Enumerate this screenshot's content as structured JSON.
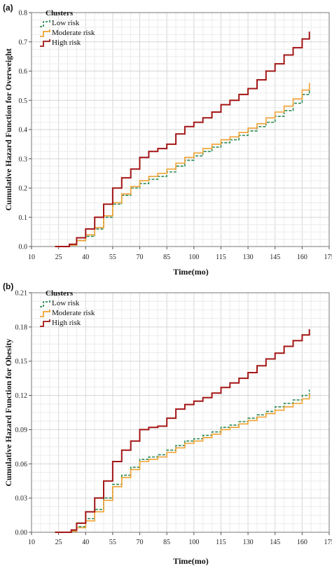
{
  "chart_data": [
    {
      "panel_label": "(a)",
      "type": "line",
      "step": true,
      "xlabel": "Time(mo)",
      "ylabel": "Cumulative Hazard Function for  Overweight",
      "xlim": [
        10,
        175
      ],
      "ylim": [
        0,
        0.8
      ],
      "xticks": [
        10,
        25,
        40,
        55,
        70,
        85,
        100,
        115,
        130,
        145,
        160,
        175
      ],
      "yticks": [
        0.0,
        0.1,
        0.2,
        0.3,
        0.4,
        0.5,
        0.6,
        0.7,
        0.8
      ],
      "ytick_labels": [
        "0.0",
        "0.1",
        "0.2",
        "0.3",
        "0.4",
        "0.5",
        "0.6",
        "0.7",
        "0.8"
      ],
      "grid": true,
      "legend": {
        "title": "Clusters",
        "position": "top-left"
      },
      "series": [
        {
          "name": "Low risk",
          "color": "#2e8b57",
          "dash": true,
          "x": [
            23,
            28,
            31,
            35,
            40,
            45,
            50,
            55,
            60,
            65,
            70,
            75,
            80,
            85,
            90,
            95,
            100,
            105,
            110,
            115,
            120,
            125,
            130,
            135,
            140,
            145,
            150,
            155,
            160,
            164
          ],
          "y": [
            0.0,
            0.0,
            0.005,
            0.02,
            0.035,
            0.06,
            0.1,
            0.145,
            0.175,
            0.2,
            0.215,
            0.23,
            0.24,
            0.255,
            0.275,
            0.295,
            0.31,
            0.325,
            0.34,
            0.355,
            0.365,
            0.38,
            0.395,
            0.41,
            0.425,
            0.445,
            0.465,
            0.49,
            0.52,
            0.54
          ]
        },
        {
          "name": "Moderate risk",
          "color": "#f0a030",
          "dash": false,
          "x": [
            23,
            28,
            31,
            35,
            40,
            45,
            50,
            55,
            60,
            65,
            70,
            75,
            80,
            85,
            90,
            95,
            100,
            105,
            110,
            115,
            120,
            125,
            130,
            135,
            140,
            145,
            150,
            155,
            160,
            164
          ],
          "y": [
            0.0,
            0.0,
            0.005,
            0.02,
            0.04,
            0.065,
            0.105,
            0.15,
            0.18,
            0.205,
            0.225,
            0.24,
            0.25,
            0.265,
            0.285,
            0.305,
            0.32,
            0.335,
            0.35,
            0.365,
            0.375,
            0.39,
            0.405,
            0.42,
            0.44,
            0.46,
            0.48,
            0.505,
            0.535,
            0.56
          ]
        },
        {
          "name": "High risk",
          "color": "#a31515",
          "dash": false,
          "x": [
            23,
            28,
            31,
            35,
            40,
            45,
            50,
            55,
            60,
            65,
            70,
            75,
            80,
            85,
            90,
            95,
            100,
            105,
            110,
            115,
            120,
            125,
            130,
            135,
            140,
            145,
            150,
            155,
            160,
            164
          ],
          "y": [
            0.0,
            0.0,
            0.008,
            0.03,
            0.06,
            0.1,
            0.145,
            0.2,
            0.235,
            0.265,
            0.305,
            0.325,
            0.335,
            0.35,
            0.385,
            0.41,
            0.425,
            0.44,
            0.46,
            0.485,
            0.5,
            0.52,
            0.54,
            0.57,
            0.6,
            0.625,
            0.655,
            0.68,
            0.71,
            0.735
          ]
        }
      ]
    },
    {
      "panel_label": "(b)",
      "type": "line",
      "step": true,
      "xlabel": "Time(mo)",
      "ylabel": "Cumulative Hazard Function for Obesity",
      "xlim": [
        10,
        175
      ],
      "ylim": [
        0,
        0.21
      ],
      "xticks": [
        10,
        25,
        40,
        55,
        70,
        85,
        100,
        115,
        130,
        145,
        160,
        175
      ],
      "yticks": [
        0.0,
        0.03,
        0.06,
        0.09,
        0.12,
        0.15,
        0.18,
        0.21
      ],
      "ytick_labels": [
        "0.00",
        "0.03",
        "0.06",
        "0.09",
        "0.12",
        "0.15",
        "0.18",
        "0.21"
      ],
      "grid": true,
      "legend": {
        "title": "Clusters",
        "position": "top-left"
      },
      "series": [
        {
          "name": "Low risk",
          "color": "#2e8b57",
          "dash": true,
          "x": [
            23,
            28,
            32,
            35,
            40,
            45,
            50,
            55,
            60,
            65,
            70,
            75,
            80,
            85,
            90,
            95,
            100,
            105,
            110,
            115,
            120,
            125,
            130,
            135,
            140,
            145,
            150,
            155,
            160,
            164
          ],
          "y": [
            0.0,
            0.0,
            0.001,
            0.005,
            0.012,
            0.02,
            0.03,
            0.042,
            0.05,
            0.057,
            0.064,
            0.066,
            0.068,
            0.072,
            0.076,
            0.08,
            0.082,
            0.085,
            0.088,
            0.092,
            0.094,
            0.097,
            0.1,
            0.103,
            0.106,
            0.11,
            0.113,
            0.116,
            0.12,
            0.125
          ]
        },
        {
          "name": "Moderate risk",
          "color": "#f0a030",
          "dash": false,
          "x": [
            23,
            28,
            32,
            35,
            40,
            45,
            50,
            55,
            60,
            65,
            70,
            75,
            80,
            85,
            90,
            95,
            100,
            105,
            110,
            115,
            120,
            125,
            130,
            135,
            140,
            145,
            150,
            155,
            160,
            164
          ],
          "y": [
            0.0,
            0.0,
            0.001,
            0.004,
            0.01,
            0.018,
            0.028,
            0.04,
            0.048,
            0.055,
            0.062,
            0.064,
            0.066,
            0.07,
            0.074,
            0.078,
            0.08,
            0.083,
            0.086,
            0.09,
            0.092,
            0.095,
            0.098,
            0.101,
            0.104,
            0.107,
            0.11,
            0.113,
            0.117,
            0.121
          ]
        },
        {
          "name": "High risk",
          "color": "#a31515",
          "dash": false,
          "x": [
            23,
            28,
            32,
            35,
            40,
            45,
            50,
            55,
            60,
            65,
            70,
            75,
            80,
            85,
            90,
            95,
            100,
            105,
            110,
            115,
            120,
            125,
            130,
            135,
            140,
            145,
            150,
            155,
            160,
            164
          ],
          "y": [
            0.0,
            0.0,
            0.002,
            0.008,
            0.018,
            0.03,
            0.045,
            0.062,
            0.072,
            0.08,
            0.09,
            0.092,
            0.093,
            0.1,
            0.108,
            0.112,
            0.115,
            0.118,
            0.122,
            0.127,
            0.131,
            0.135,
            0.14,
            0.146,
            0.152,
            0.157,
            0.163,
            0.168,
            0.173,
            0.178
          ]
        }
      ]
    }
  ]
}
